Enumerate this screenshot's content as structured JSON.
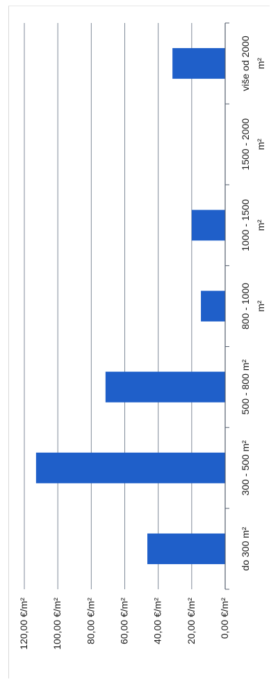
{
  "chart_data": {
    "type": "bar",
    "orientation": "rotated-90-clockwise",
    "categories": [
      "do 300 m²",
      "300 - 500 m²",
      "500 - 800 m²",
      "800 - 1000 m²",
      "1000 - 1500 m²",
      "1500 - 2000 m²",
      "više od 2000 m²"
    ],
    "category_lines": [
      [
        "do 300 m²"
      ],
      [
        "300 - 500 m²"
      ],
      [
        "500 - 800 m²"
      ],
      [
        "800 - 1000",
        "m²"
      ],
      [
        "1000 - 1500",
        "m²"
      ],
      [
        "1500 - 2000",
        "m²"
      ],
      [
        "više od 2000",
        "m²"
      ]
    ],
    "values": [
      46.5,
      113,
      71.5,
      14.5,
      20,
      0,
      31.5
    ],
    "ylim": [
      0,
      120
    ],
    "yticks": [
      0,
      20,
      40,
      60,
      80,
      100,
      120
    ],
    "ytick_labels": [
      "0,00 €/m²",
      "20,00 €/m²",
      "40,00 €/m²",
      "60,00 €/m²",
      "80,00 €/m²",
      "100,00 €/m²",
      "120,00 €/m²"
    ],
    "title": "",
    "xlabel": "",
    "ylabel": "",
    "grid": true,
    "legend": "none",
    "colors": {
      "bar": "#1f5fc9",
      "grid": "#7f8a99",
      "text": "#1a1a1a"
    }
  }
}
